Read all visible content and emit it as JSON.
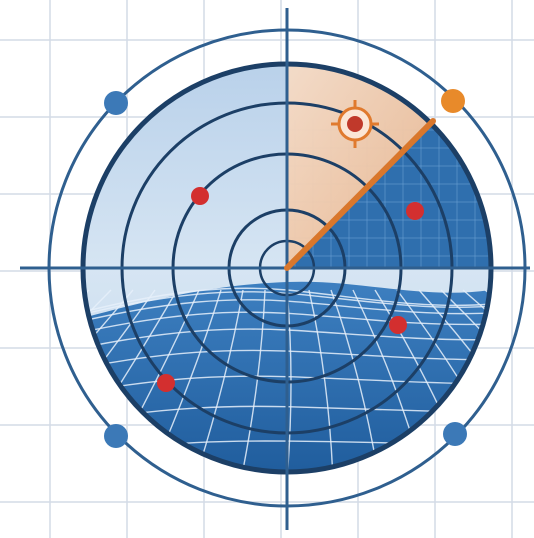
{
  "colors": {
    "background": "#ffffff",
    "grid_line": "#d3dbe6",
    "ring": "#2f5f8f",
    "ring_dark": "#1c3f66",
    "disc_light": "#c9dcee",
    "disc_blue": "#2f6fae",
    "mesh_line": "#e6f0fa",
    "sweep_fill": "#f2d2b8",
    "sweep_line": "#d9772c",
    "target_orange": "#e07a2e",
    "blip_red": "#d32f2f",
    "outer_dot_blue": "#3c79b7",
    "outer_dot_orange": "#e88a2a"
  },
  "icons": {
    "target": "crosshair-target-icon",
    "blip": "red-blip-dot",
    "outer_marker": "orbit-marker-dot"
  },
  "blip_count": 4,
  "outer_marker_count": 4
}
